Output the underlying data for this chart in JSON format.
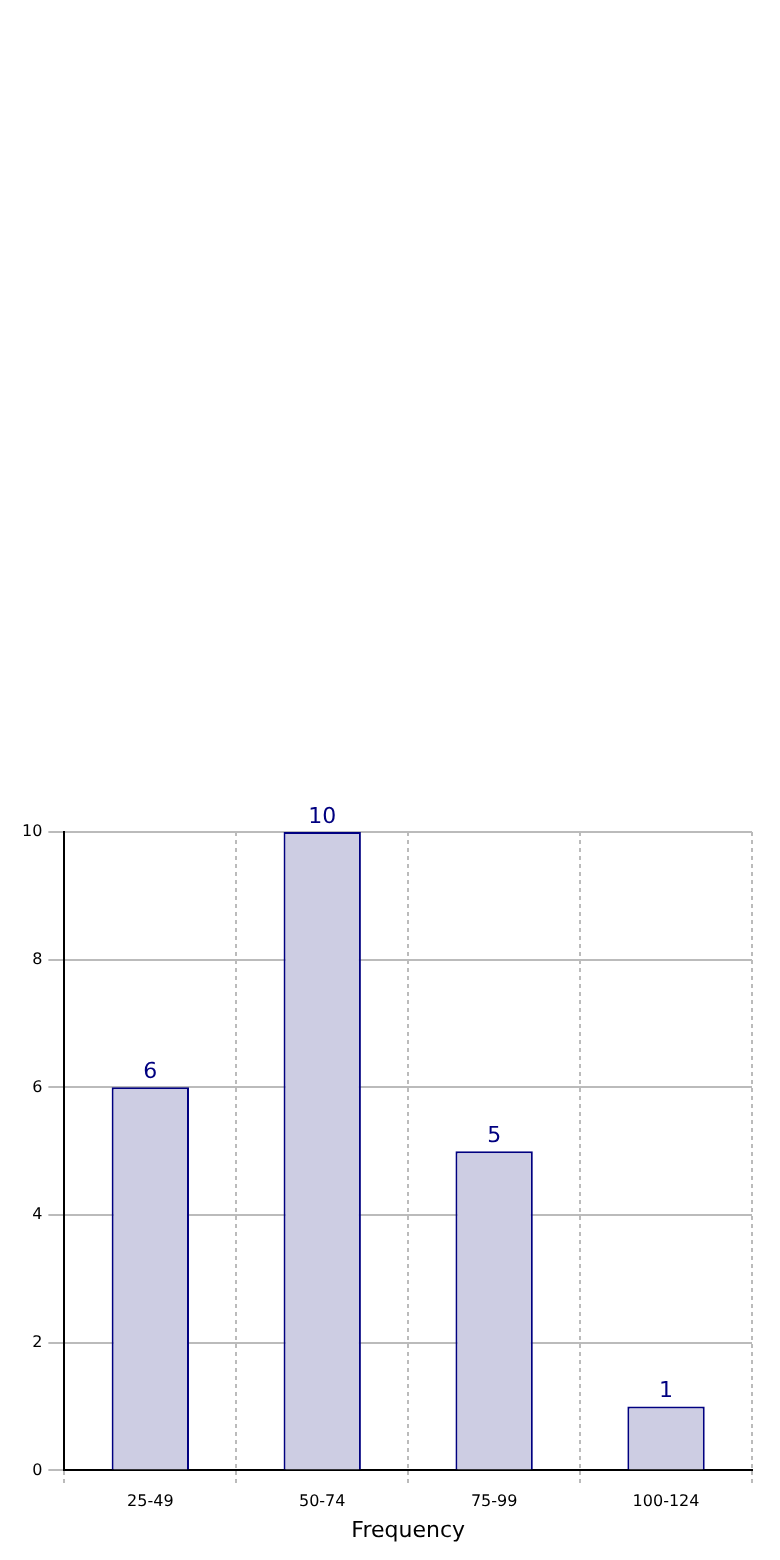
{
  "chart_data": {
    "type": "bar",
    "xlabel": "Frequency",
    "categories": [
      "25-49",
      "50-74",
      "75-99",
      "100-124"
    ],
    "series": [
      {
        "color": "#cdcde3",
        "values": [
          6,
          10,
          5,
          1
        ]
      }
    ],
    "ylim": [
      0,
      10
    ],
    "yticks": [
      0,
      2,
      4,
      6,
      8,
      10
    ],
    "grid": true,
    "data_labels": true,
    "legend": false
  }
}
